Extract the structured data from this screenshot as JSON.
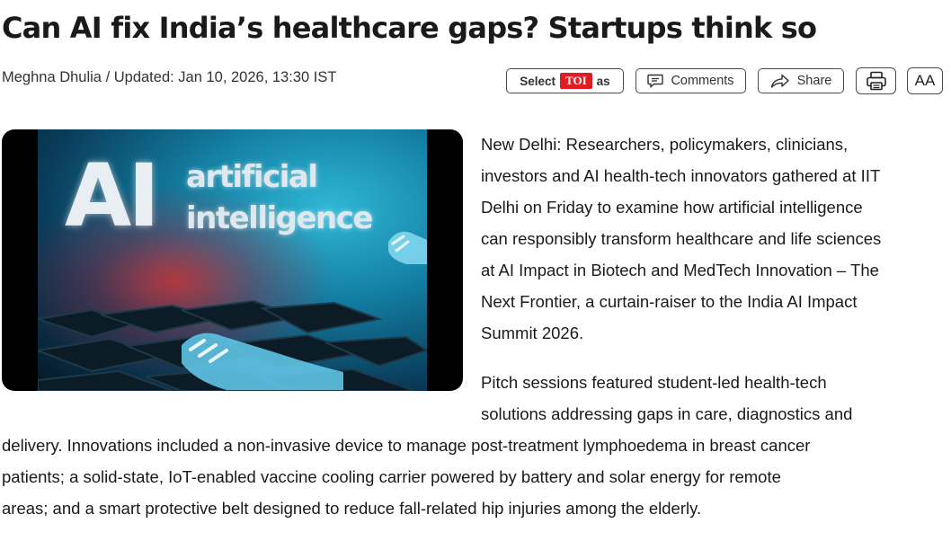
{
  "article": {
    "headline": "Can AI fix India’s healthcare gaps? Startups think so",
    "byline": "Meghna Dhulia / Updated: Jan 10, 2026, 13:30 IST"
  },
  "toolbar": {
    "select_prefix": "Select",
    "select_badge": "TOI",
    "select_suffix": "as",
    "comments_label": "Comments",
    "share_label": "Share",
    "text_size_label": "AA",
    "icons": [
      "comment-icon",
      "share-icon",
      "print-icon"
    ]
  },
  "hero_image": {
    "overlay_big": "AI",
    "overlay_line1": "artificial",
    "overlay_line2": "intelligence"
  },
  "paragraphs": {
    "p1": [
      "New Delhi: Researchers, policymakers, clinicians,",
      "investors and AI health-tech innovators gathered at IIT",
      "Delhi on Friday to examine how artificial intelligence",
      "can responsibly transform healthcare and life sciences",
      "at AI Impact in Biotech and MedTech Innovation – The",
      "Next Frontier, a curtain-raiser to the India AI Impact",
      "Summit 2026."
    ],
    "p2_wrapped": [
      "Pitch sessions featured student-led health-tech",
      "solutions addressing gaps in care, diagnostics and"
    ],
    "p2_full": [
      "delivery. Innovations included a non-invasive device to manage post-treatment lymphoedema in breast cancer",
      "patients; a solid-state, IoT-enabled vaccine cooling carrier powered by battery and solar energy for remote",
      "areas; and a smart protective belt designed to reduce fall-related hip injuries among the elderly."
    ]
  },
  "colors": {
    "toi_red": "#e21b22",
    "text": "#1a1a1a",
    "border": "#4a4a4a"
  }
}
